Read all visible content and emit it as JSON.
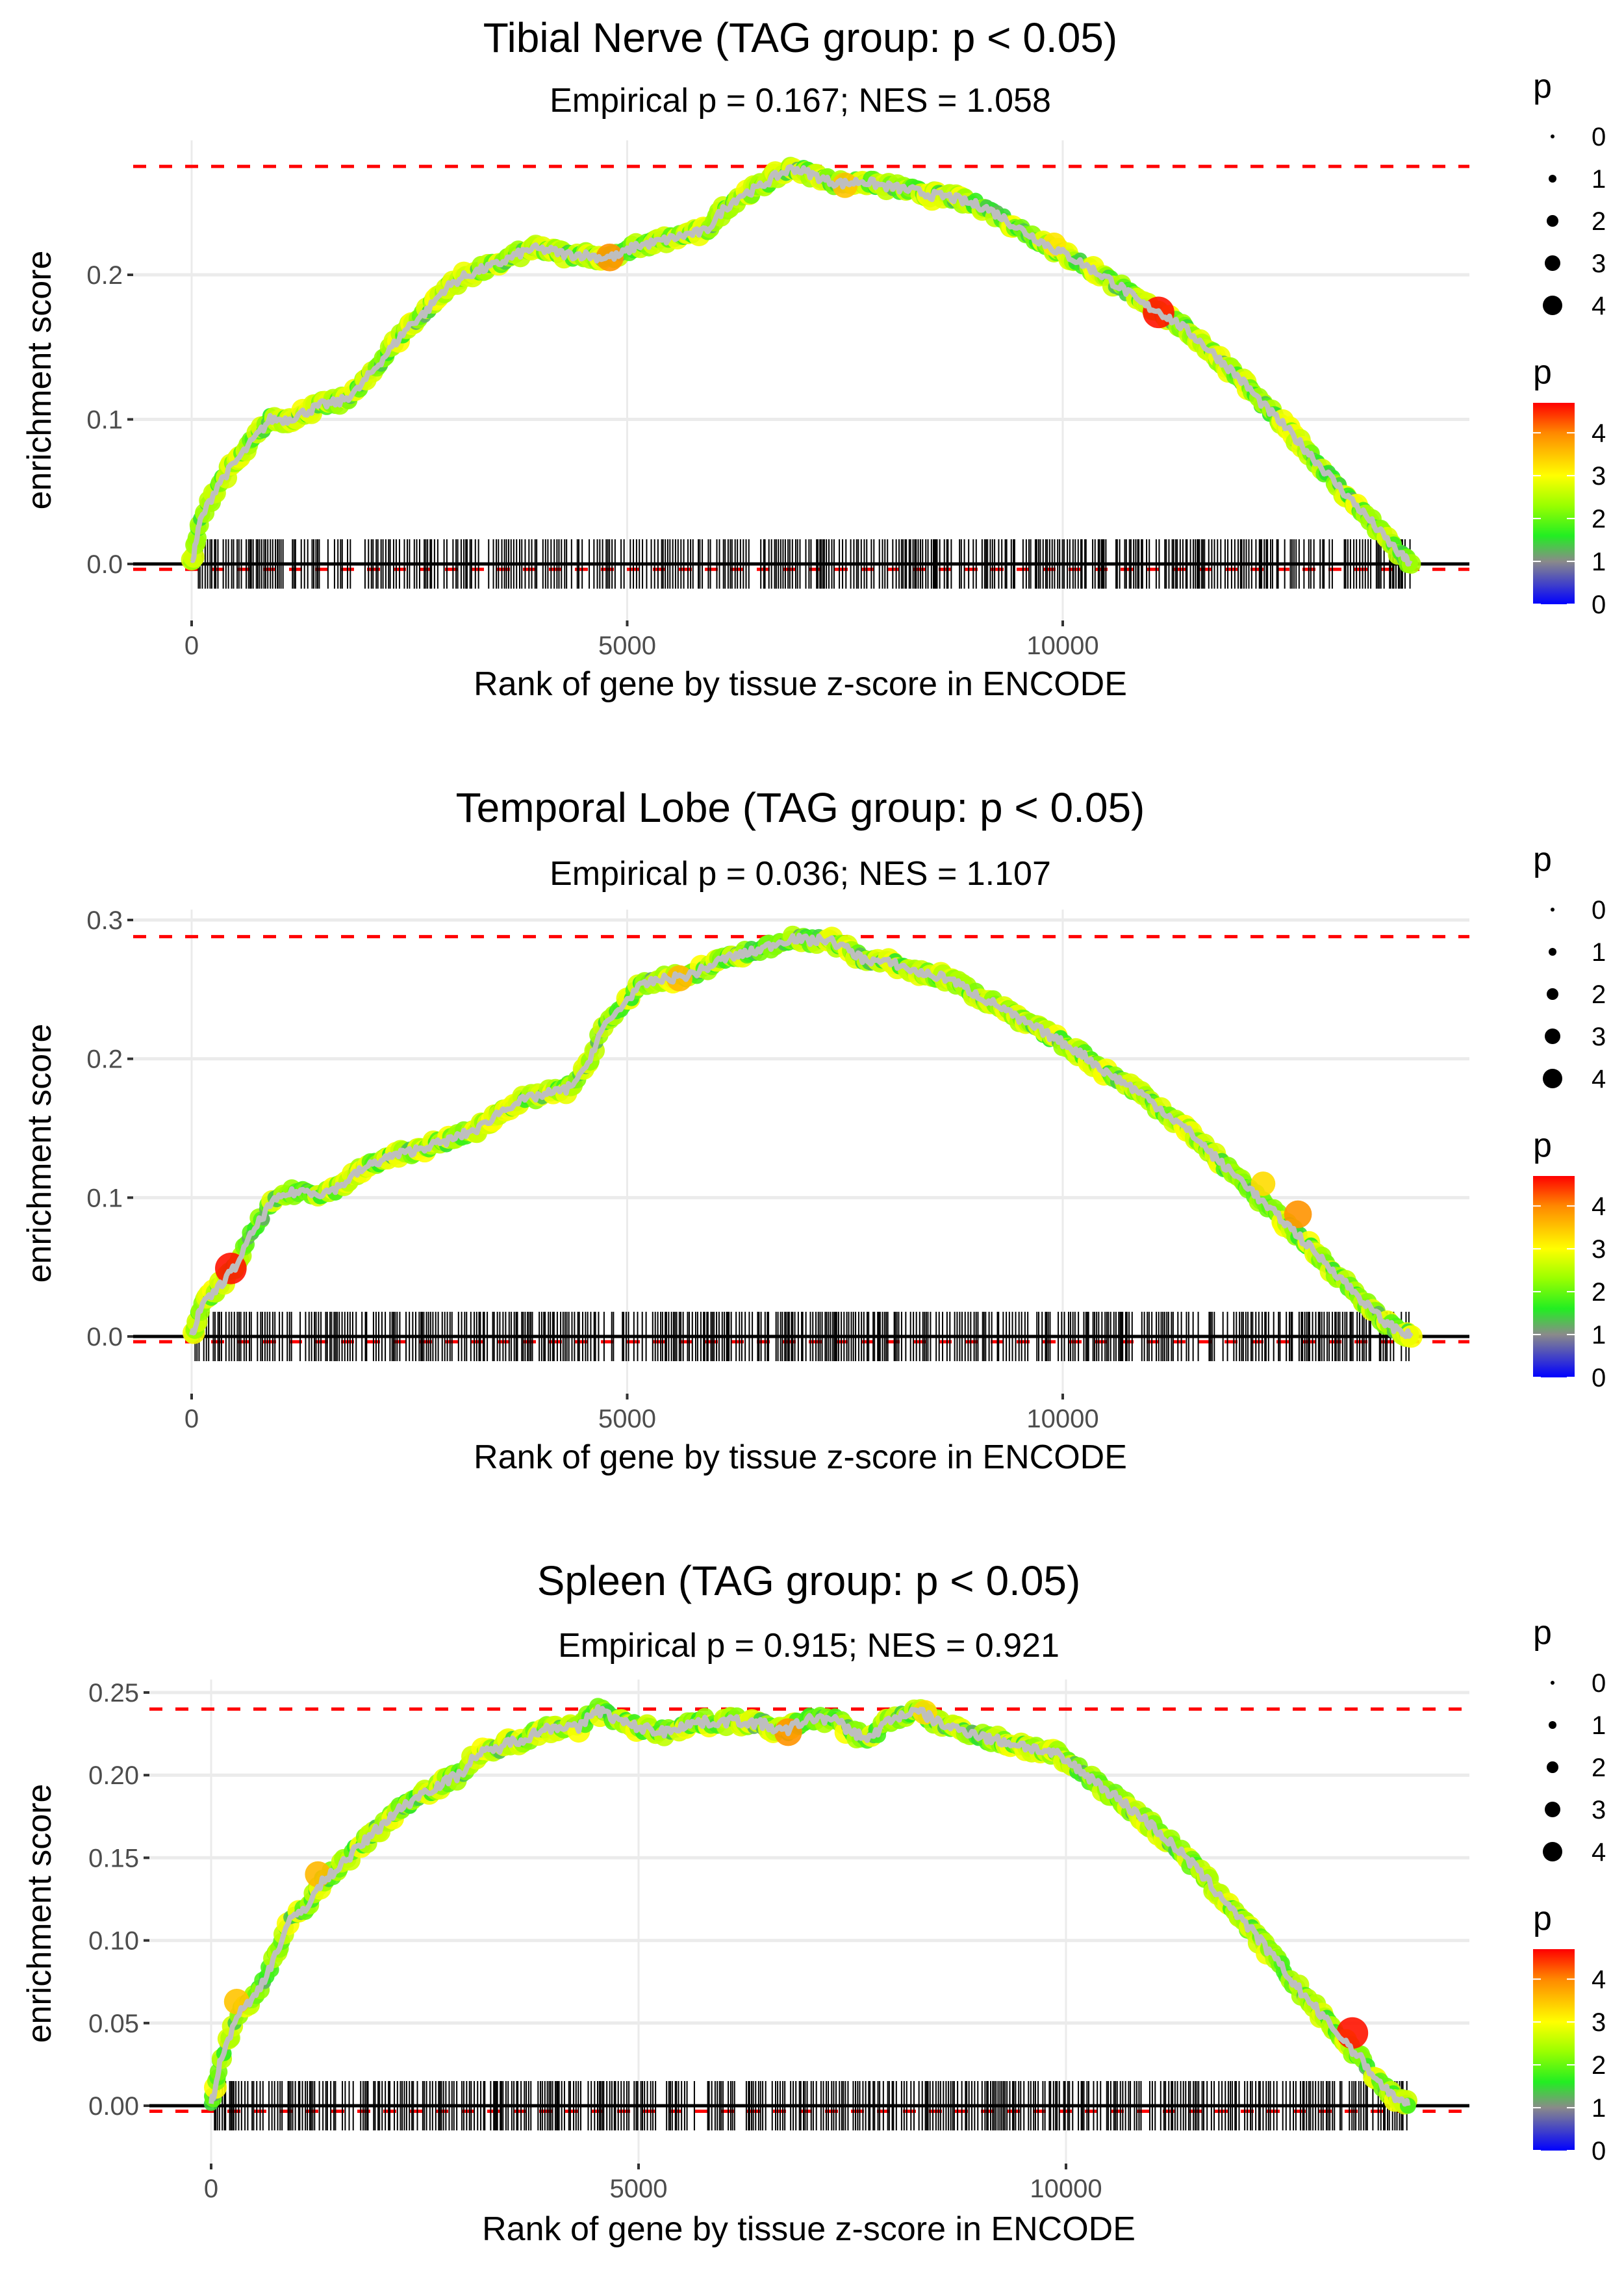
{
  "chart_data": [
    {
      "type": "line",
      "title": "Tibial Nerve (TAG group: p < 0.05)",
      "subtitle": "Empirical p = 0.167; NES = 1.058",
      "xlabel": "Rank of gene by tissue z-score in ENCODE",
      "ylabel": "enrichment score",
      "xlim": [
        -700,
        14800
      ],
      "ylim": [
        -0.01,
        0.29
      ],
      "x_ticks": [
        0,
        5000,
        10000
      ],
      "x_tick_labels": [
        "0",
        "5000",
        "10000"
      ],
      "y_ticks": [
        0.0,
        0.1,
        0.2
      ],
      "y_tick_labels": [
        "0.0",
        "0.1",
        "0.2"
      ],
      "max_es": 0.275,
      "min_es": -0.001,
      "grid": true,
      "running_es": {
        "x": [
          0,
          100,
          300,
          500,
          700,
          900,
          1100,
          1300,
          1500,
          1700,
          1900,
          2100,
          2300,
          2500,
          2700,
          2900,
          3100,
          3300,
          3500,
          3700,
          3900,
          4100,
          4300,
          4500,
          4700,
          4900,
          5100,
          5300,
          5500,
          5700,
          5900,
          6100,
          6300,
          6500,
          6700,
          6900,
          7100,
          7300,
          7500,
          7700,
          7900,
          8100,
          8300,
          8500,
          8700,
          8900,
          9100,
          9300,
          9500,
          9700,
          9900,
          10100,
          10300,
          10500,
          10700,
          10900,
          11100,
          11300,
          11500,
          11700,
          11900,
          12100,
          12300,
          12500,
          12700,
          12900,
          13100,
          13300,
          13500,
          13700,
          13900,
          14000
        ],
        "y": [
          0.0,
          0.03,
          0.055,
          0.07,
          0.085,
          0.1,
          0.1,
          0.105,
          0.11,
          0.112,
          0.12,
          0.135,
          0.15,
          0.165,
          0.175,
          0.19,
          0.198,
          0.203,
          0.207,
          0.213,
          0.218,
          0.217,
          0.214,
          0.214,
          0.212,
          0.213,
          0.22,
          0.222,
          0.225,
          0.228,
          0.23,
          0.245,
          0.255,
          0.26,
          0.268,
          0.274,
          0.27,
          0.265,
          0.263,
          0.265,
          0.262,
          0.26,
          0.258,
          0.255,
          0.254,
          0.25,
          0.247,
          0.24,
          0.232,
          0.225,
          0.218,
          0.212,
          0.205,
          0.198,
          0.19,
          0.18,
          0.175,
          0.167,
          0.158,
          0.147,
          0.136,
          0.124,
          0.11,
          0.098,
          0.085,
          0.072,
          0.058,
          0.045,
          0.032,
          0.018,
          0.005,
          0.0
        ]
      },
      "highlight_points": [
        {
          "x": 4800,
          "y": 0.212,
          "p": 3.9
        },
        {
          "x": 7500,
          "y": 0.262,
          "p": 3.5
        },
        {
          "x": 9900,
          "y": 0.221,
          "p": 3.2
        },
        {
          "x": 11100,
          "y": 0.174,
          "p": 4.6
        }
      ],
      "rug_gaps": [
        [
          1900,
          1960
        ],
        [
          3300,
          3380
        ],
        [
          6450,
          6520
        ],
        [
          10500,
          10600
        ],
        [
          13100,
          13200
        ]
      ]
    },
    {
      "type": "line",
      "title": "Temporal Lobe (TAG group: p < 0.05)",
      "subtitle": "Empirical p = 0.036; NES = 1.107",
      "xlabel": "Rank of gene by tissue z-score in ENCODE",
      "ylabel": "enrichment score",
      "xlim": [
        -700,
        14800
      ],
      "ylim": [
        -0.01,
        0.3
      ],
      "x_ticks": [
        0,
        5000,
        10000
      ],
      "x_tick_labels": [
        "0",
        "5000",
        "10000"
      ],
      "y_ticks": [
        0.0,
        0.1,
        0.2,
        0.3
      ],
      "y_tick_labels": [
        "0.0",
        "0.1",
        "0.2",
        "0.3"
      ],
      "max_es": 0.288,
      "min_es": -0.001,
      "grid": true,
      "running_es": {
        "x": [
          0,
          100,
          300,
          500,
          700,
          900,
          1100,
          1300,
          1500,
          1700,
          1900,
          2100,
          2300,
          2500,
          2700,
          2900,
          3100,
          3300,
          3500,
          3700,
          3900,
          4100,
          4300,
          4500,
          4700,
          4900,
          5100,
          5300,
          5500,
          5700,
          5900,
          6100,
          6300,
          6500,
          6700,
          6900,
          7100,
          7300,
          7500,
          7700,
          7900,
          8100,
          8300,
          8500,
          8700,
          8900,
          9100,
          9300,
          9500,
          9700,
          9900,
          10100,
          10300,
          10500,
          10700,
          10900,
          11100,
          11300,
          11500,
          11700,
          11900,
          12100,
          12300,
          12500,
          12700,
          12900,
          13100,
          13300,
          13500,
          13700,
          13900,
          14000
        ],
        "y": [
          0.0,
          0.02,
          0.035,
          0.05,
          0.075,
          0.095,
          0.103,
          0.105,
          0.103,
          0.108,
          0.118,
          0.125,
          0.13,
          0.133,
          0.137,
          0.14,
          0.145,
          0.15,
          0.16,
          0.168,
          0.172,
          0.175,
          0.178,
          0.19,
          0.22,
          0.235,
          0.25,
          0.256,
          0.258,
          0.26,
          0.265,
          0.272,
          0.275,
          0.278,
          0.283,
          0.287,
          0.285,
          0.286,
          0.28,
          0.272,
          0.27,
          0.268,
          0.263,
          0.26,
          0.258,
          0.25,
          0.243,
          0.237,
          0.228,
          0.222,
          0.215,
          0.208,
          0.2,
          0.19,
          0.183,
          0.175,
          0.165,
          0.155,
          0.145,
          0.132,
          0.12,
          0.11,
          0.096,
          0.085,
          0.073,
          0.06,
          0.048,
          0.035,
          0.022,
          0.01,
          0.003,
          0.0
        ]
      },
      "highlight_points": [
        {
          "x": 450,
          "y": 0.049,
          "p": 4.6
        },
        {
          "x": 5600,
          "y": 0.258,
          "p": 3.6
        },
        {
          "x": 12300,
          "y": 0.11,
          "p": 3.3
        },
        {
          "x": 12700,
          "y": 0.088,
          "p": 3.9
        }
      ],
      "rug_gaps": [
        [
          9600,
          9700
        ],
        [
          10800,
          10900
        ]
      ]
    },
    {
      "type": "line",
      "title": "Spleen (TAG group: p < 0.05)",
      "subtitle": "Empirical p = 0.915; NES = 0.921",
      "xlabel": "Rank of gene by tissue z-score in ENCODE",
      "ylabel": "enrichment score",
      "xlim": [
        -700,
        14800
      ],
      "ylim": [
        -0.01,
        0.255
      ],
      "x_ticks": [
        0,
        5000,
        10000
      ],
      "x_tick_labels": [
        "0",
        "5000",
        "10000"
      ],
      "y_ticks": [
        0.0,
        0.05,
        0.1,
        0.15,
        0.2,
        0.25
      ],
      "y_tick_labels": [
        "0.00",
        "0.05",
        "0.10",
        "0.15",
        "0.20",
        "0.25"
      ],
      "max_es": 0.24,
      "min_es": -0.001,
      "grid": true,
      "running_es": {
        "x": [
          0,
          100,
          300,
          500,
          700,
          900,
          1100,
          1300,
          1500,
          1700,
          1900,
          2100,
          2300,
          2500,
          2700,
          2900,
          3100,
          3300,
          3500,
          3700,
          3900,
          4100,
          4300,
          4500,
          4700,
          4900,
          5100,
          5300,
          5500,
          5700,
          5900,
          6100,
          6300,
          6500,
          6700,
          6900,
          7100,
          7300,
          7500,
          7700,
          7900,
          8100,
          8300,
          8500,
          8700,
          8900,
          9100,
          9300,
          9500,
          9700,
          9900,
          10100,
          10300,
          10500,
          10700,
          10900,
          11100,
          11300,
          11500,
          11700,
          11900,
          12100,
          12300,
          12500,
          12700,
          12900,
          13100,
          13300,
          13500,
          13700,
          13900,
          14000
        ],
        "y": [
          0.0,
          0.025,
          0.055,
          0.065,
          0.085,
          0.11,
          0.12,
          0.135,
          0.145,
          0.155,
          0.165,
          0.175,
          0.183,
          0.19,
          0.195,
          0.2,
          0.212,
          0.215,
          0.22,
          0.223,
          0.228,
          0.23,
          0.228,
          0.24,
          0.235,
          0.23,
          0.228,
          0.226,
          0.23,
          0.232,
          0.232,
          0.233,
          0.232,
          0.23,
          0.226,
          0.232,
          0.235,
          0.233,
          0.226,
          0.222,
          0.232,
          0.237,
          0.238,
          0.232,
          0.228,
          0.226,
          0.222,
          0.22,
          0.218,
          0.215,
          0.212,
          0.205,
          0.198,
          0.19,
          0.182,
          0.174,
          0.165,
          0.155,
          0.145,
          0.133,
          0.122,
          0.11,
          0.098,
          0.085,
          0.072,
          0.06,
          0.048,
          0.037,
          0.025,
          0.012,
          0.003,
          0.0
        ]
      },
      "highlight_points": [
        {
          "x": 300,
          "y": 0.063,
          "p": 3.5
        },
        {
          "x": 1250,
          "y": 0.14,
          "p": 3.6
        },
        {
          "x": 6750,
          "y": 0.226,
          "p": 3.9
        },
        {
          "x": 8350,
          "y": 0.238,
          "p": 3.3
        },
        {
          "x": 13350,
          "y": 0.044,
          "p": 4.6
        }
      ],
      "rug_gaps": [
        [
          5200,
          5300
        ],
        [
          5700,
          5800
        ],
        [
          6150,
          6250
        ]
      ]
    }
  ],
  "legend": {
    "size_title": "p",
    "size_labels": [
      "0",
      "1",
      "2",
      "3",
      "4"
    ],
    "color_title": "p",
    "color_labels": [
      "4",
      "3",
      "2",
      "1",
      "0"
    ],
    "color_range": [
      0,
      4.7
    ],
    "color_stops": [
      {
        "value": 0,
        "color": "#0000ff"
      },
      {
        "value": 1,
        "color": "#8a8a8a"
      },
      {
        "value": 1.6,
        "color": "#22ee22"
      },
      {
        "value": 2.3,
        "color": "#99ff00"
      },
      {
        "value": 3,
        "color": "#ffff00"
      },
      {
        "value": 4,
        "color": "#ff8800"
      },
      {
        "value": 4.7,
        "color": "#ff0000"
      }
    ]
  },
  "colors": {
    "line": "#bebebe",
    "max_line": "#ff0000",
    "grid": "#ebebeb",
    "rug": "#000000",
    "zero_line": "#000000"
  }
}
